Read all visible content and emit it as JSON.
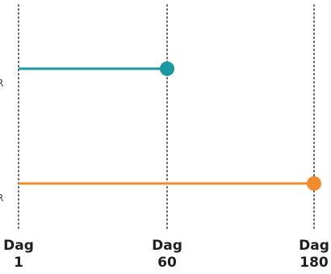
{
  "chart_data": {
    "type": "line",
    "title": "",
    "xlabel": "",
    "ylabel": "",
    "x_ticks": [
      {
        "value": 1,
        "line1": "Dag",
        "line2": "1"
      },
      {
        "value": 60,
        "line1": "Dag",
        "line2": "60"
      },
      {
        "value": 180,
        "line1": "Dag",
        "line2": "180"
      }
    ],
    "xlim": [
      1,
      180
    ],
    "grid": "vertical dotted lines at ticks",
    "legend": "none",
    "series": [
      {
        "color": "#1a9aa0",
        "row_label": "R",
        "x": [
          1,
          60
        ],
        "y": [
          1,
          1
        ],
        "end_marker": true
      },
      {
        "color": "#f08c2e",
        "row_label": "R",
        "x": [
          1,
          180
        ],
        "y": [
          0,
          0
        ],
        "end_marker": true
      }
    ]
  }
}
